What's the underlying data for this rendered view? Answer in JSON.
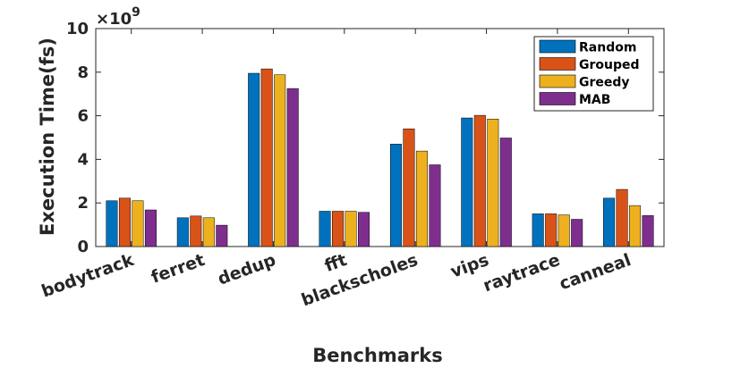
{
  "chart_data": {
    "type": "bar",
    "categories": [
      "bodytrack",
      "ferret",
      "dedup",
      "fft",
      "blackscholes",
      "vips",
      "raytrace",
      "canneal"
    ],
    "series": [
      {
        "name": "Random",
        "color": "#0072BD",
        "values": [
          2.1,
          1.32,
          7.95,
          1.62,
          4.7,
          5.9,
          1.5,
          2.22
        ]
      },
      {
        "name": "Grouped",
        "color": "#D95319",
        "values": [
          2.22,
          1.4,
          8.15,
          1.62,
          5.4,
          6.02,
          1.5,
          2.62
        ]
      },
      {
        "name": "Greedy",
        "color": "#EDB120",
        "values": [
          2.1,
          1.32,
          7.88,
          1.62,
          4.38,
          5.85,
          1.45,
          1.88
        ]
      },
      {
        "name": "MAB",
        "color": "#7E2F8E",
        "values": [
          1.68,
          0.98,
          7.25,
          1.57,
          3.75,
          4.98,
          1.25,
          1.42
        ]
      }
    ],
    "xlabel": "Benchmarks",
    "ylabel": "Execution Time(fs)",
    "ylim": [
      0,
      10
    ],
    "yticks": [
      "0",
      "2",
      "4",
      "6",
      "8",
      "10"
    ],
    "y_exponent_base": "×10",
    "y_exponent_power": "9",
    "legend_position": "top-right",
    "grid": false
  }
}
